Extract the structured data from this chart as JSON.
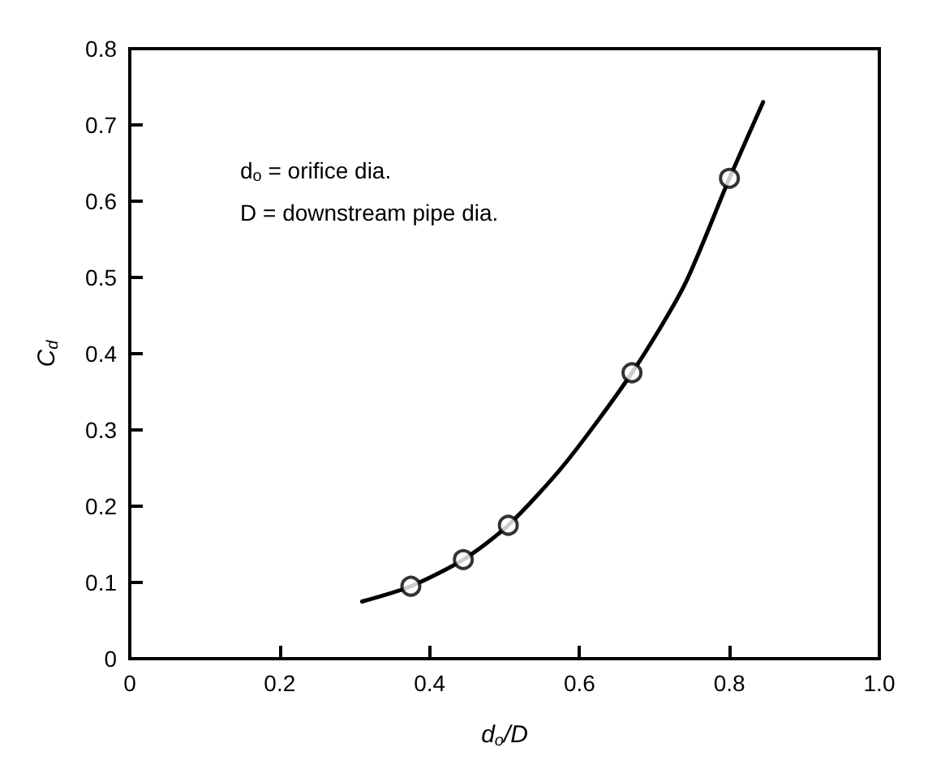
{
  "chart_data": {
    "type": "scatter",
    "xlabel": "d$_{o}$/D",
    "ylabel": "C$_{d}$",
    "annotations": [
      "d$_{o}$ = orifice dia.",
      "D = downstream pipe dia."
    ],
    "xlim": [
      0,
      1
    ],
    "ylim": [
      0,
      0.8
    ],
    "xticks": [
      0,
      0.2,
      0.4,
      0.6,
      0.8,
      {
        "value": 1,
        "label": "1.0"
      }
    ],
    "yticks": [
      0,
      0.1,
      0.2,
      0.3,
      0.4,
      0.5,
      0.6,
      0.7,
      0.8
    ],
    "grid": false,
    "marker": "circle",
    "series": [
      {
        "color": "#000000",
        "x": [
          0.375,
          0.445,
          0.505,
          0.67,
          0.8
        ],
        "values": [
          0.095,
          0.13,
          0.175,
          0.375,
          0.63
        ]
      },
      {
        "type": "line",
        "color": "#000000",
        "marker": "none",
        "line_style": "solid",
        "x": [
          0.31,
          0.375,
          0.445,
          0.505,
          0.58,
          0.67,
          0.74,
          0.8,
          0.845
        ],
        "values": [
          0.075,
          0.095,
          0.13,
          0.175,
          0.255,
          0.375,
          0.49,
          0.63,
          0.73
        ]
      }
    ]
  }
}
